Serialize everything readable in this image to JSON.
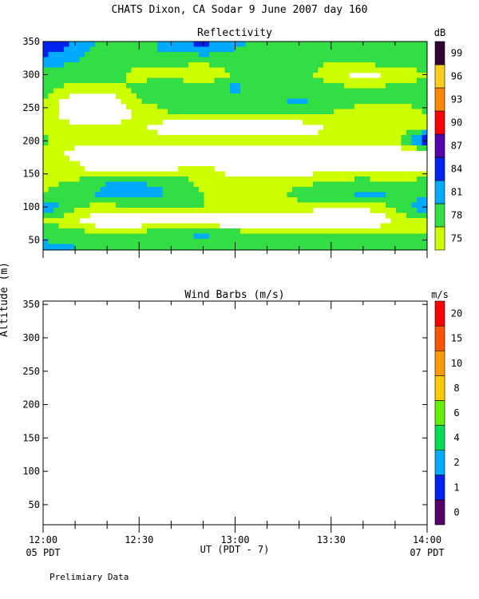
{
  "figure": {
    "title": "CHATS Dixon, CA  Sodar   9 June 2007  day 160",
    "ylabel": "Altitude (m)",
    "xlabel": "UT  (PDT - 7)",
    "start_local": "05 PDT",
    "end_local": "07 PDT",
    "footer": "Prelimiary Data"
  },
  "chart_data": [
    {
      "type": "heatmap",
      "title": "Reflectivity",
      "colorbar_unit": "dB",
      "x_ticks": [
        "12:00",
        "12:30",
        "13:00",
        "13:30",
        "14:00"
      ],
      "xlim": [
        "12:00",
        "14:00"
      ],
      "ylim": [
        35,
        350
      ],
      "y_ticks": [
        50,
        100,
        150,
        200,
        250,
        300,
        350
      ],
      "levels": [
        75,
        78,
        81,
        84,
        87,
        90,
        93,
        96,
        99
      ],
      "colors": [
        "#ccff00",
        "#33dd44",
        "#00aaff",
        "#0022ee",
        "#5500aa",
        "#ff0000",
        "#ff8800",
        "#ffcc22",
        "#330033"
      ],
      "background_color": "#ffffff",
      "times": [
        "12:00",
        "12:10",
        "12:20",
        "12:30",
        "12:40",
        "12:50",
        "13:00",
        "13:10",
        "13:20",
        "13:30",
        "13:40",
        "13:50",
        "14:00"
      ],
      "altitudes": [
        40,
        60,
        80,
        100,
        120,
        140,
        160,
        180,
        200,
        220,
        240,
        260,
        280,
        300,
        320,
        340,
        350
      ],
      "grid_db": [
        [
          82,
          81,
          80,
          80,
          80,
          79,
          79,
          79,
          79,
          79,
          79,
          79,
          80
        ],
        [
          80,
          79,
          78,
          79,
          80,
          82,
          80,
          78,
          78,
          78,
          78,
          78,
          78
        ],
        [
          78,
          76,
          70,
          72,
          73,
          71,
          70,
          70,
          70,
          70,
          70,
          76,
          78
        ],
        [
          84,
          78,
          77,
          78,
          78,
          78,
          77,
          77,
          77,
          76,
          76,
          78,
          84
        ],
        [
          78,
          80,
          82,
          82,
          81,
          78,
          76,
          76,
          79,
          80,
          82,
          81,
          80
        ],
        [
          77,
          78,
          81,
          81,
          80,
          77,
          76,
          76,
          77,
          78,
          79,
          78,
          79
        ],
        [
          76,
          76,
          72,
          72,
          74,
          76,
          73,
          72,
          72,
          73,
          72,
          72,
          72
        ],
        [
          76,
          74,
          72,
          72,
          72,
          72,
          72,
          72,
          72,
          72,
          72,
          72,
          72
        ],
        [
          79,
          76,
          76,
          78,
          76,
          76,
          76,
          78,
          77,
          76,
          76,
          76,
          88
        ],
        [
          77,
          76,
          76,
          76,
          72,
          72,
          72,
          72,
          72,
          76,
          76,
          76,
          78
        ],
        [
          77,
          72,
          72,
          76,
          78,
          78,
          79,
          78,
          79,
          78,
          76,
          76,
          78
        ],
        [
          78,
          72,
          72,
          78,
          79,
          78,
          80,
          79,
          82,
          79,
          79,
          78,
          79
        ],
        [
          79,
          77,
          76,
          79,
          80,
          79,
          82,
          79,
          78,
          79,
          78,
          79,
          79
        ],
        [
          80,
          79,
          80,
          77,
          77,
          76,
          78,
          80,
          79,
          77,
          73,
          76,
          78
        ],
        [
          83,
          81,
          78,
          79,
          79,
          78,
          80,
          79,
          79,
          78,
          79,
          80,
          79
        ],
        [
          86,
          83,
          79,
          80,
          82,
          84,
          81,
          79,
          79,
          78,
          79,
          80,
          81
        ],
        [
          86,
          84,
          80,
          80,
          82,
          85,
          82,
          80,
          80,
          79,
          80,
          81,
          81
        ]
      ]
    },
    {
      "type": "scatter",
      "title": "Wind Barbs (m/s)",
      "colorbar_unit": "m/s",
      "x_ticks": [
        "12:00",
        "12:30",
        "13:00",
        "13:30",
        "14:00"
      ],
      "xlim": [
        "12:00",
        "14:00"
      ],
      "ylim": [
        20,
        355
      ],
      "y_ticks": [
        50,
        100,
        150,
        200,
        250,
        300,
        350
      ],
      "levels": [
        0,
        1,
        2,
        4,
        6,
        8,
        10,
        15,
        20
      ],
      "colors": [
        "#550066",
        "#0022ee",
        "#00aaff",
        "#00dd55",
        "#66ee00",
        "#ffcc00",
        "#ff9900",
        "#ff5500",
        "#ff0000"
      ],
      "series": []
    }
  ]
}
